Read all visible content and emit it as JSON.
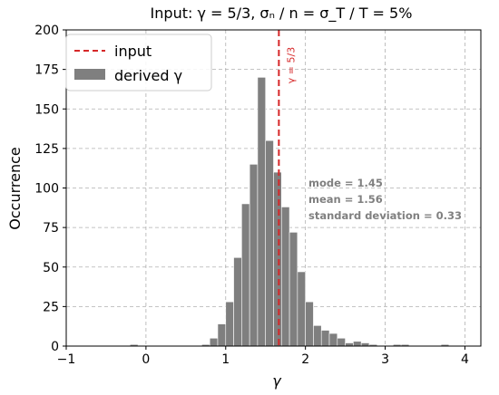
{
  "chart_data": {
    "type": "bar",
    "title": "Input: γ = 5/3,  σₙ / n = σ_T / T = 5%",
    "xlabel": "γ",
    "ylabel": "Occurrence",
    "xlim": [
      -1,
      4.2
    ],
    "ylim": [
      0,
      200
    ],
    "xticks": [
      -1,
      0,
      1,
      2,
      3,
      4
    ],
    "xtick_labels": [
      "−1",
      "0",
      "1",
      "2",
      "3",
      "4"
    ],
    "yticks": [
      0,
      25,
      50,
      75,
      100,
      125,
      150,
      175,
      200
    ],
    "grid": true,
    "legend_position": "top-left",
    "legend": [
      {
        "label": "input",
        "style": "dashed-line",
        "color": "#d62728"
      },
      {
        "label": "derived γ",
        "style": "patch",
        "color": "#7f7f7f"
      }
    ],
    "bin_width": 0.1,
    "bins": [
      {
        "x0": -0.2,
        "value": 1
      },
      {
        "x0": 0.7,
        "value": 1
      },
      {
        "x0": 0.8,
        "value": 5
      },
      {
        "x0": 0.9,
        "value": 14
      },
      {
        "x0": 1.0,
        "value": 28
      },
      {
        "x0": 1.1,
        "value": 56
      },
      {
        "x0": 1.2,
        "value": 90
      },
      {
        "x0": 1.3,
        "value": 115
      },
      {
        "x0": 1.4,
        "value": 170
      },
      {
        "x0": 1.5,
        "value": 130
      },
      {
        "x0": 1.6,
        "value": 110
      },
      {
        "x0": 1.7,
        "value": 88
      },
      {
        "x0": 1.8,
        "value": 72
      },
      {
        "x0": 1.9,
        "value": 47
      },
      {
        "x0": 2.0,
        "value": 28
      },
      {
        "x0": 2.1,
        "value": 13
      },
      {
        "x0": 2.2,
        "value": 10
      },
      {
        "x0": 2.3,
        "value": 8
      },
      {
        "x0": 2.4,
        "value": 5
      },
      {
        "x0": 2.5,
        "value": 2
      },
      {
        "x0": 2.6,
        "value": 3
      },
      {
        "x0": 2.7,
        "value": 2
      },
      {
        "x0": 2.8,
        "value": 1
      },
      {
        "x0": 3.1,
        "value": 1
      },
      {
        "x0": 3.2,
        "value": 1
      },
      {
        "x0": 3.7,
        "value": 1
      }
    ],
    "input_line": {
      "x": 1.6667,
      "label": "γ = 5/3",
      "color": "#d62728"
    },
    "annotations": [
      "mode = 1.45",
      "mean = 1.56",
      "standard deviation = 0.33"
    ],
    "bar_color": "#7f7f7f"
  }
}
